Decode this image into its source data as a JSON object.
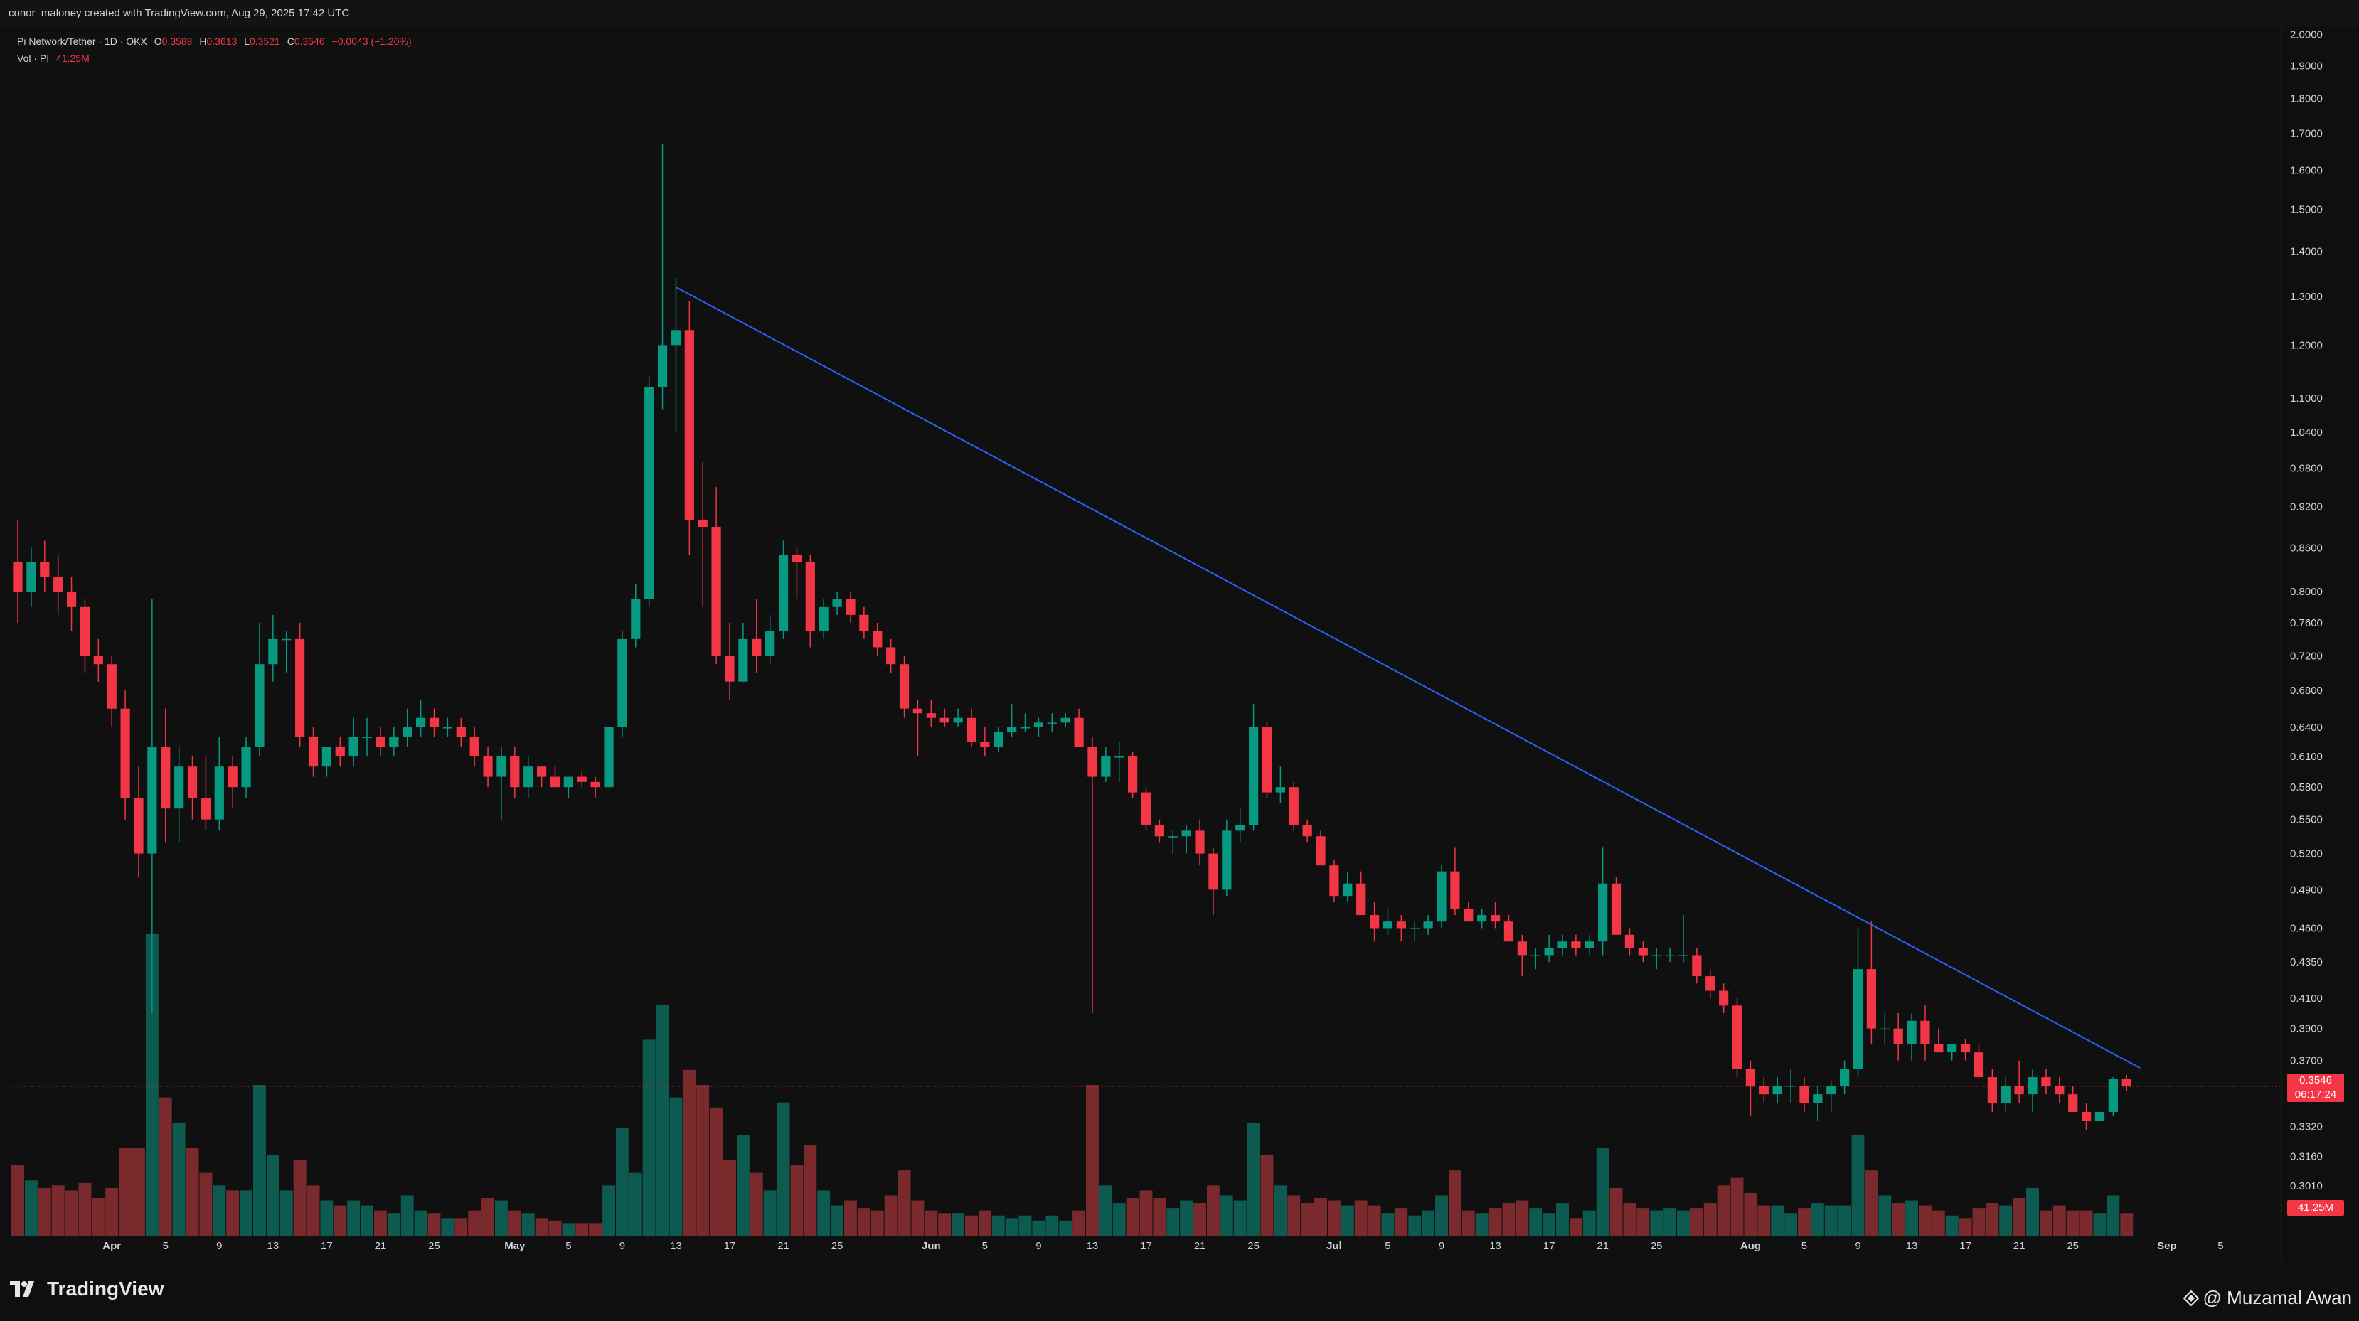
{
  "header": {
    "credit": "conor_maloney created with TradingView.com, Aug 29, 2025 17:42 UTC"
  },
  "legend": {
    "symbol": "Pi Network/Tether · 1D · OKX",
    "o_label": "O",
    "o_value": "0.3588",
    "h_label": "H",
    "h_value": "0.3613",
    "l_label": "L",
    "l_value": "0.3521",
    "c_label": "C",
    "c_value": "0.3546",
    "change": "−0.0043 (−1.20%)",
    "vol_label": "Vol · PI",
    "vol_value": "41.25M"
  },
  "price_badge": {
    "price": "0.3546",
    "countdown": "06:17:24"
  },
  "volume_badge": "41.25M",
  "footer": {
    "brand": "TradingView",
    "watermark": "@ Muzamal Awan"
  },
  "colors": {
    "up": "#089981",
    "down": "#f23645",
    "up_vol": "#0d5a50",
    "down_vol": "#7a2a2c",
    "trendline": "#2962ff",
    "axis_text": "#d1d4dc"
  },
  "chart_data": {
    "type": "candlestick",
    "title": "Pi Network/Tether · 1D · OKX",
    "y_scale": "log",
    "y_ticks": [
      "2.0000",
      "1.9000",
      "1.8000",
      "1.7000",
      "1.6000",
      "1.5000",
      "1.4000",
      "1.3000",
      "1.2000",
      "1.1000",
      "1.0400",
      "0.9800",
      "0.9200",
      "0.8600",
      "0.8000",
      "0.7600",
      "0.7200",
      "0.6800",
      "0.6400",
      "0.6100",
      "0.5800",
      "0.5500",
      "0.5200",
      "0.4900",
      "0.4600",
      "0.4350",
      "0.4100",
      "0.3900",
      "0.3700",
      "0.3320",
      "0.3160",
      "0.3010"
    ],
    "x_ticks": [
      "Apr",
      "5",
      "9",
      "13",
      "17",
      "21",
      "25",
      "May",
      "5",
      "9",
      "13",
      "17",
      "21",
      "25",
      "Jun",
      "5",
      "9",
      "13",
      "17",
      "21",
      "25",
      "Jul",
      "5",
      "9",
      "13",
      "17",
      "21",
      "25",
      "Aug",
      "5",
      "9",
      "13",
      "17",
      "21",
      "25",
      "Sep",
      "5"
    ],
    "x_range": [
      "2025-03-25",
      "2025-09-09"
    ],
    "y_range": [
      0.29,
      2.02
    ],
    "last_price": 0.3546,
    "trendline": {
      "from": [
        "2025-05-13",
        1.32
      ],
      "to": [
        "2025-08-30",
        0.3655
      ]
    },
    "candles": [
      [
        "2025-03-25",
        0.84,
        0.9,
        0.76,
        0.8,
        2.8
      ],
      [
        "2025-03-26",
        0.8,
        0.86,
        0.78,
        0.84,
        2.2
      ],
      [
        "2025-03-27",
        0.84,
        0.87,
        0.8,
        0.82,
        1.9
      ],
      [
        "2025-03-28",
        0.82,
        0.85,
        0.77,
        0.8,
        2.0
      ],
      [
        "2025-03-29",
        0.8,
        0.82,
        0.75,
        0.78,
        1.8
      ],
      [
        "2025-03-30",
        0.78,
        0.79,
        0.7,
        0.72,
        2.1
      ],
      [
        "2025-03-31",
        0.72,
        0.74,
        0.69,
        0.71,
        1.5
      ],
      [
        "2025-04-01",
        0.71,
        0.72,
        0.64,
        0.66,
        1.9
      ],
      [
        "2025-04-02",
        0.66,
        0.68,
        0.55,
        0.57,
        3.5
      ],
      [
        "2025-04-03",
        0.57,
        0.6,
        0.5,
        0.52,
        3.5
      ],
      [
        "2025-04-04",
        0.52,
        0.79,
        0.4,
        0.62,
        12.0
      ],
      [
        "2025-04-05",
        0.62,
        0.66,
        0.53,
        0.56,
        5.5
      ],
      [
        "2025-04-06",
        0.56,
        0.62,
        0.53,
        0.6,
        4.5
      ],
      [
        "2025-04-07",
        0.6,
        0.61,
        0.55,
        0.57,
        3.5
      ],
      [
        "2025-04-08",
        0.57,
        0.61,
        0.54,
        0.55,
        2.5
      ],
      [
        "2025-04-09",
        0.55,
        0.63,
        0.54,
        0.6,
        2.0
      ],
      [
        "2025-04-10",
        0.6,
        0.61,
        0.56,
        0.58,
        1.8
      ],
      [
        "2025-04-11",
        0.58,
        0.63,
        0.57,
        0.62,
        1.8
      ],
      [
        "2025-04-12",
        0.62,
        0.76,
        0.61,
        0.71,
        6.0
      ],
      [
        "2025-04-13",
        0.71,
        0.77,
        0.69,
        0.74,
        3.2
      ],
      [
        "2025-04-14",
        0.74,
        0.75,
        0.7,
        0.74,
        1.8
      ],
      [
        "2025-04-15",
        0.74,
        0.76,
        0.62,
        0.63,
        3.0
      ],
      [
        "2025-04-16",
        0.63,
        0.64,
        0.59,
        0.6,
        2.0
      ],
      [
        "2025-04-17",
        0.6,
        0.62,
        0.59,
        0.62,
        1.4
      ],
      [
        "2025-04-18",
        0.62,
        0.63,
        0.6,
        0.61,
        1.2
      ],
      [
        "2025-04-19",
        0.61,
        0.65,
        0.6,
        0.63,
        1.4
      ],
      [
        "2025-04-20",
        0.63,
        0.65,
        0.61,
        0.63,
        1.2
      ],
      [
        "2025-04-21",
        0.63,
        0.64,
        0.61,
        0.62,
        1.0
      ],
      [
        "2025-04-22",
        0.62,
        0.64,
        0.61,
        0.63,
        0.9
      ],
      [
        "2025-04-23",
        0.63,
        0.66,
        0.62,
        0.64,
        1.6
      ],
      [
        "2025-04-24",
        0.64,
        0.67,
        0.63,
        0.65,
        1.0
      ],
      [
        "2025-04-25",
        0.65,
        0.66,
        0.63,
        0.64,
        0.9
      ],
      [
        "2025-04-26",
        0.64,
        0.65,
        0.63,
        0.64,
        0.7
      ],
      [
        "2025-04-27",
        0.64,
        0.65,
        0.62,
        0.63,
        0.7
      ],
      [
        "2025-04-28",
        0.63,
        0.64,
        0.6,
        0.61,
        1.0
      ],
      [
        "2025-04-29",
        0.61,
        0.62,
        0.58,
        0.59,
        1.5
      ],
      [
        "2025-04-30",
        0.59,
        0.62,
        0.55,
        0.61,
        1.4
      ],
      [
        "2025-05-01",
        0.61,
        0.62,
        0.57,
        0.58,
        1.0
      ],
      [
        "2025-05-02",
        0.58,
        0.61,
        0.57,
        0.6,
        0.9
      ],
      [
        "2025-05-03",
        0.6,
        0.6,
        0.58,
        0.59,
        0.7
      ],
      [
        "2025-05-04",
        0.59,
        0.6,
        0.58,
        0.58,
        0.6
      ],
      [
        "2025-05-05",
        0.58,
        0.59,
        0.57,
        0.59,
        0.5
      ],
      [
        "2025-05-06",
        0.59,
        0.595,
        0.58,
        0.585,
        0.5
      ],
      [
        "2025-05-07",
        0.585,
        0.59,
        0.57,
        0.58,
        0.5
      ],
      [
        "2025-05-08",
        0.58,
        0.64,
        0.58,
        0.64,
        2.0
      ],
      [
        "2025-05-09",
        0.64,
        0.75,
        0.63,
        0.74,
        4.3
      ],
      [
        "2025-05-10",
        0.74,
        0.81,
        0.73,
        0.79,
        2.5
      ],
      [
        "2025-05-11",
        0.79,
        1.14,
        0.78,
        1.12,
        7.8
      ],
      [
        "2025-05-12",
        1.12,
        1.67,
        1.08,
        1.2,
        9.2
      ],
      [
        "2025-05-13",
        1.2,
        1.34,
        1.04,
        1.23,
        5.5
      ],
      [
        "2025-05-14",
        1.23,
        1.29,
        0.85,
        0.9,
        6.6
      ],
      [
        "2025-05-15",
        0.9,
        0.99,
        0.78,
        0.89,
        6.0
      ],
      [
        "2025-05-16",
        0.89,
        0.95,
        0.71,
        0.72,
        5.1
      ],
      [
        "2025-05-17",
        0.72,
        0.76,
        0.67,
        0.69,
        3.0
      ],
      [
        "2025-05-18",
        0.69,
        0.76,
        0.69,
        0.74,
        4.0
      ],
      [
        "2025-05-19",
        0.74,
        0.79,
        0.7,
        0.72,
        2.5
      ],
      [
        "2025-05-20",
        0.72,
        0.77,
        0.71,
        0.75,
        1.8
      ],
      [
        "2025-05-21",
        0.75,
        0.87,
        0.74,
        0.85,
        5.3
      ],
      [
        "2025-05-22",
        0.85,
        0.86,
        0.79,
        0.84,
        2.8
      ],
      [
        "2025-05-23",
        0.84,
        0.85,
        0.73,
        0.75,
        3.6
      ],
      [
        "2025-05-24",
        0.75,
        0.79,
        0.74,
        0.78,
        1.8
      ],
      [
        "2025-05-25",
        0.78,
        0.8,
        0.77,
        0.79,
        1.2
      ],
      [
        "2025-05-26",
        0.79,
        0.8,
        0.76,
        0.77,
        1.4
      ],
      [
        "2025-05-27",
        0.77,
        0.78,
        0.74,
        0.75,
        1.1
      ],
      [
        "2025-05-28",
        0.75,
        0.76,
        0.72,
        0.73,
        1.0
      ],
      [
        "2025-05-29",
        0.73,
        0.74,
        0.7,
        0.71,
        1.6
      ],
      [
        "2025-05-30",
        0.71,
        0.72,
        0.65,
        0.66,
        2.6
      ],
      [
        "2025-05-31",
        0.66,
        0.67,
        0.61,
        0.655,
        1.4
      ],
      [
        "2025-06-01",
        0.655,
        0.67,
        0.64,
        0.65,
        1.0
      ],
      [
        "2025-06-02",
        0.65,
        0.66,
        0.64,
        0.645,
        0.9
      ],
      [
        "2025-06-03",
        0.645,
        0.66,
        0.64,
        0.65,
        0.9
      ],
      [
        "2025-06-04",
        0.65,
        0.66,
        0.62,
        0.625,
        0.8
      ],
      [
        "2025-06-05",
        0.625,
        0.64,
        0.61,
        0.62,
        1.0
      ],
      [
        "2025-06-06",
        0.62,
        0.64,
        0.615,
        0.635,
        0.8
      ],
      [
        "2025-06-07",
        0.635,
        0.665,
        0.63,
        0.64,
        0.7
      ],
      [
        "2025-06-08",
        0.64,
        0.655,
        0.635,
        0.64,
        0.8
      ],
      [
        "2025-06-09",
        0.64,
        0.65,
        0.63,
        0.645,
        0.6
      ],
      [
        "2025-06-10",
        0.645,
        0.655,
        0.635,
        0.645,
        0.8
      ],
      [
        "2025-06-11",
        0.645,
        0.655,
        0.64,
        0.65,
        0.6
      ],
      [
        "2025-06-12",
        0.65,
        0.66,
        0.62,
        0.62,
        1.0
      ],
      [
        "2025-06-13",
        0.62,
        0.63,
        0.4,
        0.59,
        6.0
      ],
      [
        "2025-06-14",
        0.59,
        0.62,
        0.585,
        0.61,
        2.0
      ],
      [
        "2025-06-15",
        0.61,
        0.625,
        0.585,
        0.61,
        1.3
      ],
      [
        "2025-06-16",
        0.61,
        0.615,
        0.57,
        0.575,
        1.5
      ],
      [
        "2025-06-17",
        0.575,
        0.58,
        0.54,
        0.545,
        1.8
      ],
      [
        "2025-06-18",
        0.545,
        0.55,
        0.53,
        0.535,
        1.5
      ],
      [
        "2025-06-19",
        0.535,
        0.54,
        0.52,
        0.535,
        1.1
      ],
      [
        "2025-06-20",
        0.535,
        0.545,
        0.52,
        0.54,
        1.4
      ],
      [
        "2025-06-21",
        0.54,
        0.55,
        0.51,
        0.52,
        1.3
      ],
      [
        "2025-06-22",
        0.52,
        0.525,
        0.47,
        0.49,
        2.0
      ],
      [
        "2025-06-23",
        0.49,
        0.55,
        0.485,
        0.54,
        1.6
      ],
      [
        "2025-06-24",
        0.54,
        0.56,
        0.53,
        0.545,
        1.4
      ],
      [
        "2025-06-25",
        0.545,
        0.665,
        0.54,
        0.64,
        4.5
      ],
      [
        "2025-06-26",
        0.64,
        0.645,
        0.57,
        0.575,
        3.2
      ],
      [
        "2025-06-27",
        0.575,
        0.6,
        0.565,
        0.58,
        2.0
      ],
      [
        "2025-06-28",
        0.58,
        0.585,
        0.54,
        0.545,
        1.6
      ],
      [
        "2025-06-29",
        0.545,
        0.55,
        0.53,
        0.535,
        1.3
      ],
      [
        "2025-06-30",
        0.535,
        0.54,
        0.51,
        0.51,
        1.5
      ],
      [
        "2025-07-01",
        0.51,
        0.515,
        0.48,
        0.485,
        1.4
      ],
      [
        "2025-07-02",
        0.485,
        0.505,
        0.48,
        0.495,
        1.2
      ],
      [
        "2025-07-03",
        0.495,
        0.505,
        0.47,
        0.47,
        1.4
      ],
      [
        "2025-07-04",
        0.47,
        0.48,
        0.45,
        0.46,
        1.2
      ],
      [
        "2025-07-05",
        0.46,
        0.475,
        0.455,
        0.465,
        0.9
      ],
      [
        "2025-07-06",
        0.465,
        0.47,
        0.45,
        0.46,
        1.1
      ],
      [
        "2025-07-07",
        0.46,
        0.465,
        0.45,
        0.46,
        0.8
      ],
      [
        "2025-07-08",
        0.46,
        0.47,
        0.455,
        0.465,
        1.0
      ],
      [
        "2025-07-09",
        0.465,
        0.51,
        0.46,
        0.505,
        1.6
      ],
      [
        "2025-07-10",
        0.505,
        0.525,
        0.47,
        0.475,
        2.6
      ],
      [
        "2025-07-11",
        0.475,
        0.48,
        0.465,
        0.465,
        1.0
      ],
      [
        "2025-07-12",
        0.465,
        0.475,
        0.46,
        0.47,
        0.9
      ],
      [
        "2025-07-13",
        0.47,
        0.48,
        0.46,
        0.465,
        1.1
      ],
      [
        "2025-07-14",
        0.465,
        0.47,
        0.45,
        0.45,
        1.3
      ],
      [
        "2025-07-15",
        0.45,
        0.455,
        0.425,
        0.44,
        1.4
      ],
      [
        "2025-07-16",
        0.44,
        0.445,
        0.43,
        0.44,
        1.1
      ],
      [
        "2025-07-17",
        0.44,
        0.455,
        0.435,
        0.445,
        0.9
      ],
      [
        "2025-07-18",
        0.445,
        0.455,
        0.44,
        0.45,
        1.3
      ],
      [
        "2025-07-19",
        0.45,
        0.455,
        0.44,
        0.445,
        0.7
      ],
      [
        "2025-07-20",
        0.445,
        0.455,
        0.44,
        0.45,
        1.0
      ],
      [
        "2025-07-21",
        0.45,
        0.525,
        0.44,
        0.495,
        3.5
      ],
      [
        "2025-07-22",
        0.495,
        0.5,
        0.455,
        0.455,
        1.9
      ],
      [
        "2025-07-23",
        0.455,
        0.46,
        0.44,
        0.445,
        1.3
      ],
      [
        "2025-07-24",
        0.445,
        0.45,
        0.435,
        0.44,
        1.1
      ],
      [
        "2025-07-25",
        0.44,
        0.445,
        0.43,
        0.44,
        1.0
      ],
      [
        "2025-07-26",
        0.44,
        0.445,
        0.435,
        0.44,
        1.1
      ],
      [
        "2025-07-27",
        0.44,
        0.47,
        0.435,
        0.44,
        1.0
      ],
      [
        "2025-07-28",
        0.44,
        0.445,
        0.42,
        0.425,
        1.1
      ],
      [
        "2025-07-29",
        0.425,
        0.43,
        0.41,
        0.415,
        1.3
      ],
      [
        "2025-07-30",
        0.415,
        0.42,
        0.4,
        0.405,
        2.0
      ],
      [
        "2025-07-31",
        0.405,
        0.41,
        0.36,
        0.365,
        2.3
      ],
      [
        "2025-08-01",
        0.365,
        0.37,
        0.338,
        0.355,
        1.7
      ],
      [
        "2025-08-02",
        0.355,
        0.36,
        0.345,
        0.35,
        1.2
      ],
      [
        "2025-08-03",
        0.35,
        0.36,
        0.345,
        0.355,
        1.2
      ],
      [
        "2025-08-04",
        0.355,
        0.365,
        0.345,
        0.355,
        0.9
      ],
      [
        "2025-08-05",
        0.355,
        0.36,
        0.34,
        0.345,
        1.1
      ],
      [
        "2025-08-06",
        0.345,
        0.355,
        0.335,
        0.35,
        1.3
      ],
      [
        "2025-08-07",
        0.35,
        0.358,
        0.34,
        0.355,
        1.2
      ],
      [
        "2025-08-08",
        0.355,
        0.37,
        0.35,
        0.365,
        1.2
      ],
      [
        "2025-08-09",
        0.365,
        0.46,
        0.36,
        0.43,
        4.0
      ],
      [
        "2025-08-10",
        0.43,
        0.465,
        0.38,
        0.39,
        2.6
      ],
      [
        "2025-08-11",
        0.39,
        0.4,
        0.38,
        0.39,
        1.6
      ],
      [
        "2025-08-12",
        0.39,
        0.4,
        0.37,
        0.38,
        1.3
      ],
      [
        "2025-08-13",
        0.38,
        0.4,
        0.37,
        0.395,
        1.4
      ],
      [
        "2025-08-14",
        0.395,
        0.405,
        0.37,
        0.38,
        1.2
      ],
      [
        "2025-08-15",
        0.38,
        0.39,
        0.375,
        0.375,
        1.0
      ],
      [
        "2025-08-16",
        0.375,
        0.38,
        0.37,
        0.38,
        0.8
      ],
      [
        "2025-08-17",
        0.38,
        0.383,
        0.37,
        0.375,
        0.7
      ],
      [
        "2025-08-18",
        0.375,
        0.38,
        0.36,
        0.36,
        1.1
      ],
      [
        "2025-08-19",
        0.36,
        0.365,
        0.34,
        0.345,
        1.3
      ],
      [
        "2025-08-20",
        0.345,
        0.36,
        0.34,
        0.355,
        1.2
      ],
      [
        "2025-08-21",
        0.355,
        0.37,
        0.345,
        0.35,
        1.5
      ],
      [
        "2025-08-22",
        0.35,
        0.365,
        0.34,
        0.36,
        1.9
      ],
      [
        "2025-08-23",
        0.36,
        0.365,
        0.35,
        0.355,
        1.0
      ],
      [
        "2025-08-24",
        0.355,
        0.36,
        0.345,
        0.35,
        1.2
      ],
      [
        "2025-08-25",
        0.35,
        0.355,
        0.34,
        0.34,
        1.0
      ],
      [
        "2025-08-26",
        0.34,
        0.345,
        0.33,
        0.335,
        1.0
      ],
      [
        "2025-08-27",
        0.335,
        0.34,
        0.335,
        0.34,
        0.9
      ],
      [
        "2025-08-28",
        0.34,
        0.36,
        0.338,
        0.3588,
        1.6
      ],
      [
        "2025-08-29",
        0.3588,
        0.3613,
        0.3521,
        0.3546,
        0.9
      ]
    ]
  }
}
